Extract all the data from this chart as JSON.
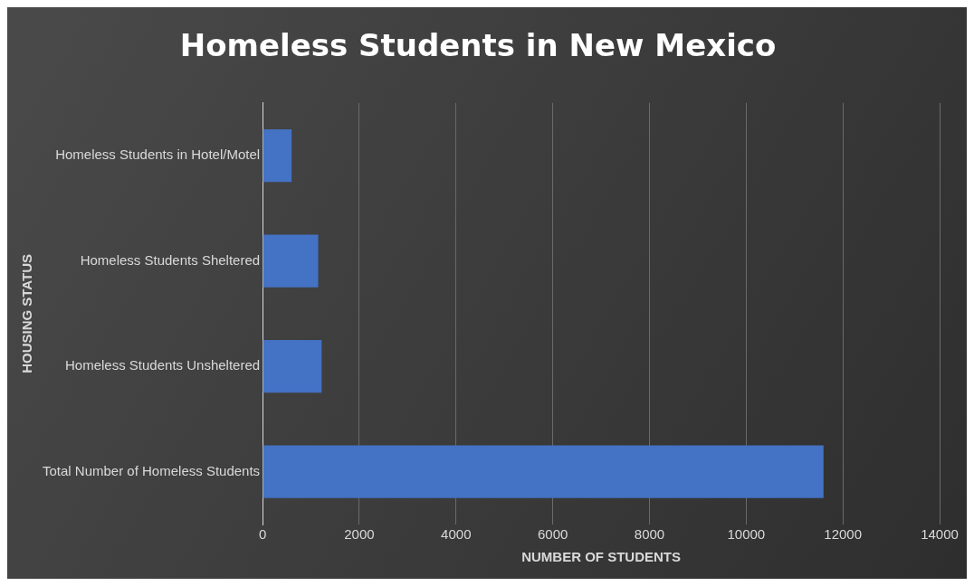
{
  "chart_data": {
    "type": "bar",
    "orientation": "horizontal",
    "title": "Homeless Students in New Mexico",
    "xlabel": "NUMBER OF STUDENTS",
    "ylabel": "HOUSING STATUS",
    "categories": [
      "Homeless Students in Hotel/Motel",
      "Homeless Students Sheltered",
      "Homeless Students Unsheltered",
      "Total Number of Homeless Students"
    ],
    "values": [
      600,
      1150,
      1220,
      11600
    ],
    "color": "#4472c4",
    "xlim": [
      0,
      14000
    ],
    "xticks": [
      0,
      2000,
      4000,
      6000,
      8000,
      10000,
      12000,
      14000
    ],
    "grid": "x",
    "legend": false
  }
}
